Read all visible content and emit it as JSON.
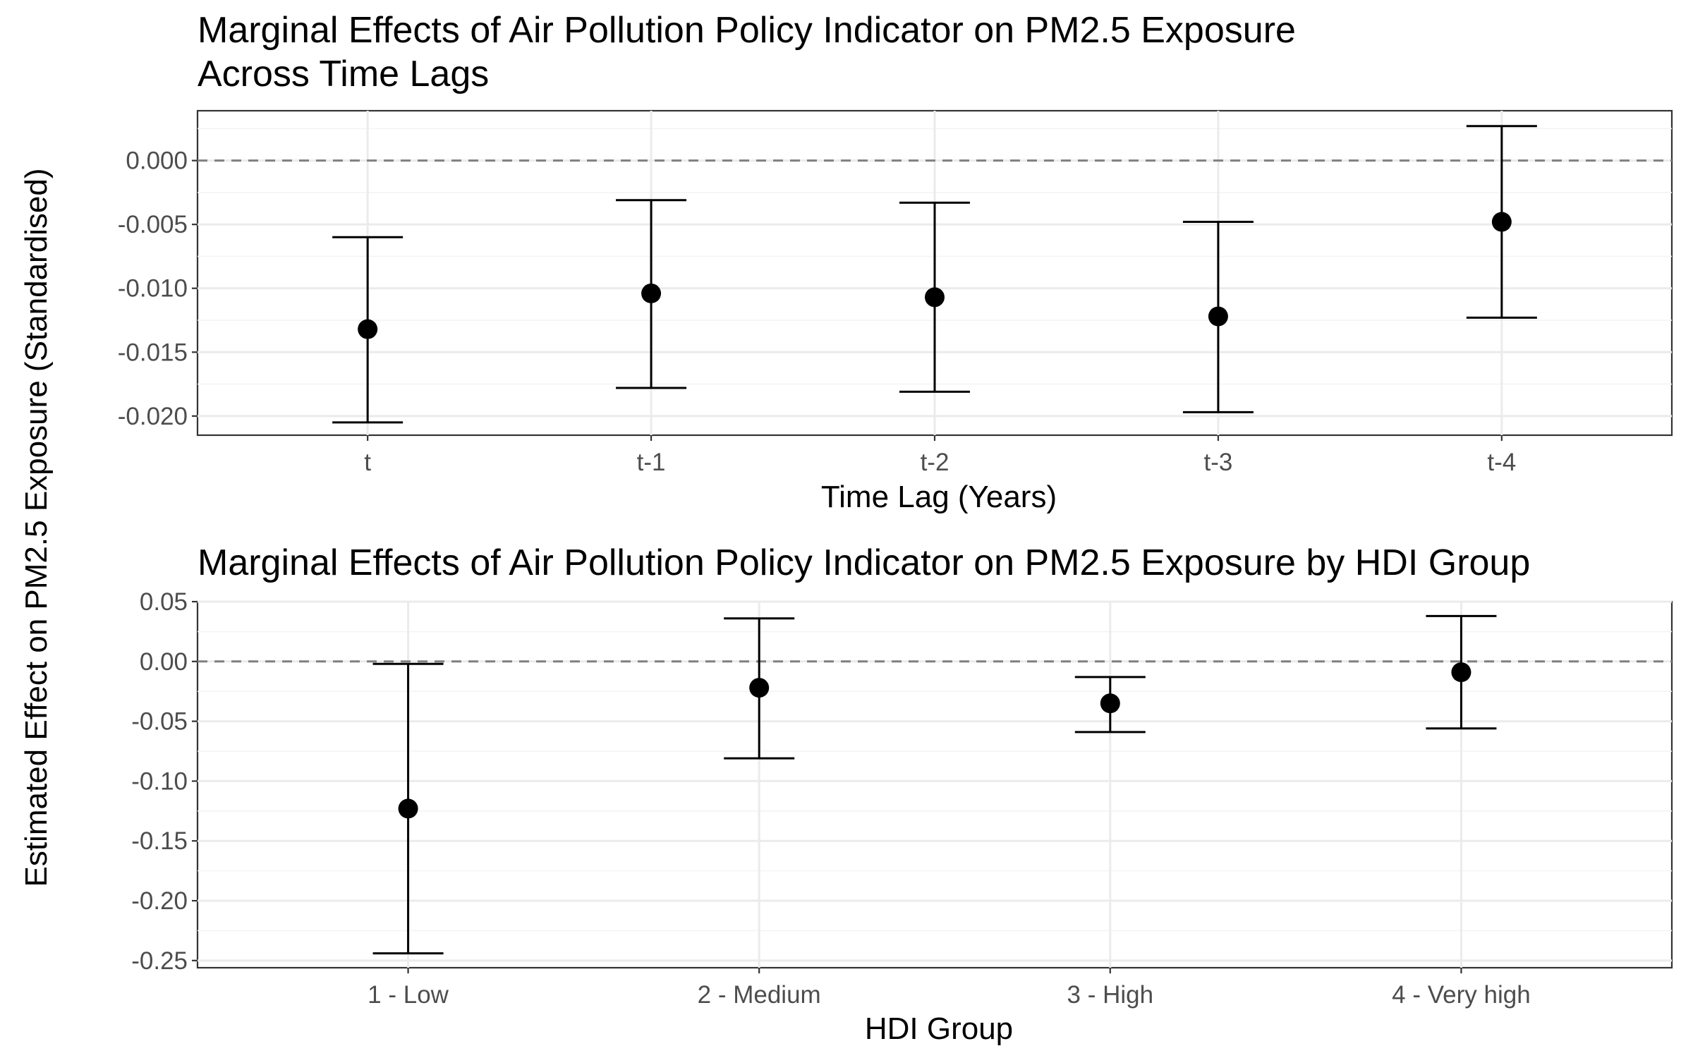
{
  "ylabel_shared": "Estimated Effect on PM2.5 Exposure (Standardised)",
  "colors": {
    "point": "#000000",
    "errorbar": "#000000",
    "reference_line": "#808080",
    "grid": "#ebebeb"
  },
  "chart_data": [
    {
      "type": "scatter",
      "title_lines": [
        "Marginal Effects of Air Pollution Policy Indicator on PM2.5 Exposure",
        "Across Time Lags"
      ],
      "xlabel": "Time Lag (Years)",
      "ylabel": "Estimated Effect on PM2.5 Exposure (Standardised)",
      "categories": [
        "t",
        "t-1",
        "t-2",
        "t-3",
        "t-4"
      ],
      "estimate": [
        -0.0132,
        -0.0104,
        -0.0107,
        -0.0122,
        -0.0048
      ],
      "ci_low": [
        -0.0205,
        -0.0178,
        -0.0181,
        -0.0197,
        -0.0123
      ],
      "ci_high": [
        -0.006,
        -0.0031,
        -0.0033,
        -0.0048,
        0.0027
      ],
      "ylim": [
        -0.0215,
        0.0039
      ],
      "yticks": [
        0.0,
        -0.005,
        -0.01,
        -0.015,
        -0.02
      ],
      "ytick_labels": [
        "0.000",
        "-0.005",
        "-0.010",
        "-0.015",
        "-0.020"
      ],
      "reference_line": 0,
      "grid": true,
      "legend": "none"
    },
    {
      "type": "scatter",
      "title_lines": [
        "Marginal Effects of Air Pollution Policy Indicator on PM2.5 Exposure by HDI Group"
      ],
      "xlabel": "HDI Group",
      "ylabel": "Estimated Effect on PM2.5 Exposure (Standardised)",
      "categories": [
        "1 - Low",
        "2 - Medium",
        "3 - High",
        "4 - Very high"
      ],
      "estimate": [
        -0.123,
        -0.022,
        -0.035,
        -0.009
      ],
      "ci_low": [
        -0.244,
        -0.081,
        -0.059,
        -0.056
      ],
      "ci_high": [
        -0.002,
        0.036,
        -0.013,
        0.038
      ],
      "ylim": [
        -0.256,
        0.05
      ],
      "yticks": [
        0.05,
        0.0,
        -0.05,
        -0.1,
        -0.15,
        -0.2,
        -0.25
      ],
      "ytick_labels": [
        "0.05",
        "0.00",
        "-0.05",
        "-0.10",
        "-0.15",
        "-0.20",
        "-0.25"
      ],
      "reference_line": 0,
      "grid": true,
      "legend": "none"
    }
  ]
}
